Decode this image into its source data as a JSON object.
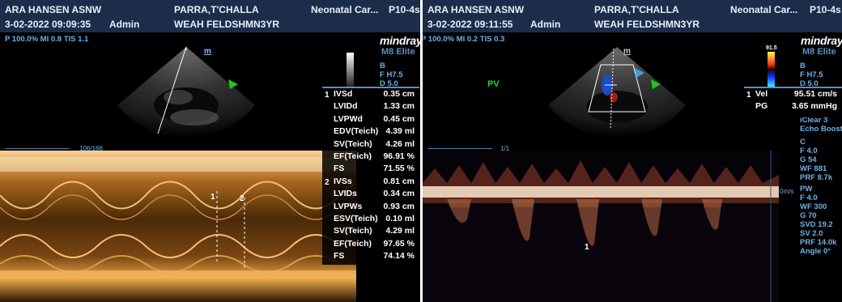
{
  "left": {
    "header": {
      "facility": "ARA HANSEN ASNW",
      "patient": "PARRA,T'CHALLA",
      "exam": "Neonatal Car...",
      "probe": "P10-4s",
      "datetime": "3-02-2022 09:09:35",
      "operator": "Admin",
      "physician": "WEAH FELDSHMN3YR"
    },
    "params": "P 100.0% MI 0.8 TIS 1.1",
    "brand": "mindray",
    "model": "M8 Elite",
    "side": [
      "B",
      "F H7.5",
      "D 5.0"
    ],
    "mmode_marker": "m",
    "sweep_label": "106/166",
    "calipers": [
      "1",
      "2"
    ],
    "measurements": [
      {
        "index": "1",
        "label": "IVSd",
        "value": "0.35 cm"
      },
      {
        "index": "",
        "label": "LVIDd",
        "value": "1.33 cm"
      },
      {
        "index": "",
        "label": "LVPWd",
        "value": "0.45 cm"
      },
      {
        "index": "",
        "label": "EDV(Teich)",
        "value": "4.39 ml"
      },
      {
        "index": "",
        "label": "SV(Teich)",
        "value": "4.26 ml"
      },
      {
        "index": "",
        "label": "EF(Teich)",
        "value": "96.91 %"
      },
      {
        "index": "",
        "label": "FS",
        "value": "71.55 %"
      },
      {
        "index": "2",
        "label": "IVSs",
        "value": "0.81 cm"
      },
      {
        "index": "",
        "label": "LVIDs",
        "value": "0.34 cm"
      },
      {
        "index": "",
        "label": "LVPWs",
        "value": "0.93 cm"
      },
      {
        "index": "",
        "label": "ESV(Teich)",
        "value": "0.10 ml"
      },
      {
        "index": "",
        "label": "SV(Teich)",
        "value": "4.29 ml"
      },
      {
        "index": "",
        "label": "EF(Teich)",
        "value": "97.65 %"
      },
      {
        "index": "",
        "label": "FS",
        "value": "74.14 %"
      }
    ]
  },
  "right": {
    "header": {
      "facility": "ARA HANSEN ASNW",
      "patient": "PARRA,T'CHALLA",
      "exam": "Neonatal Car...",
      "probe": "P10-4s",
      "datetime": "3-02-2022 09:11:55",
      "operator": "Admin",
      "physician": "WEAH FELDSHMN3YR"
    },
    "params": "P 100.0% MI 0.2 TIS 0.3",
    "brand": "mindray",
    "model": "M8 Elite",
    "mode_label": "PV",
    "color_scale_top": "91.5",
    "mmode_marker": "m",
    "sweep_label": "1/1",
    "baseline_label": "0m/s",
    "caliper": "1",
    "side_top": [
      "B",
      "F H7.5",
      "D 5.0"
    ],
    "side_b": [
      "iClear 3",
      "Echo Boost"
    ],
    "side_c": [
      "C",
      "F 4.0",
      "G 54",
      "WF 881",
      "PRF 8.7k"
    ],
    "side_pw": [
      "PW",
      "F 4.0",
      "WF 300",
      "G 70",
      "SVD 19.2",
      "SV 2.0",
      "PRF 14.0k",
      "Angle 0°"
    ],
    "measurements": [
      {
        "index": "1",
        "label": "Vel",
        "value": "95.51 cm/s"
      },
      {
        "index": "",
        "label": "PG",
        "value": "3.65 mmHg"
      }
    ]
  }
}
